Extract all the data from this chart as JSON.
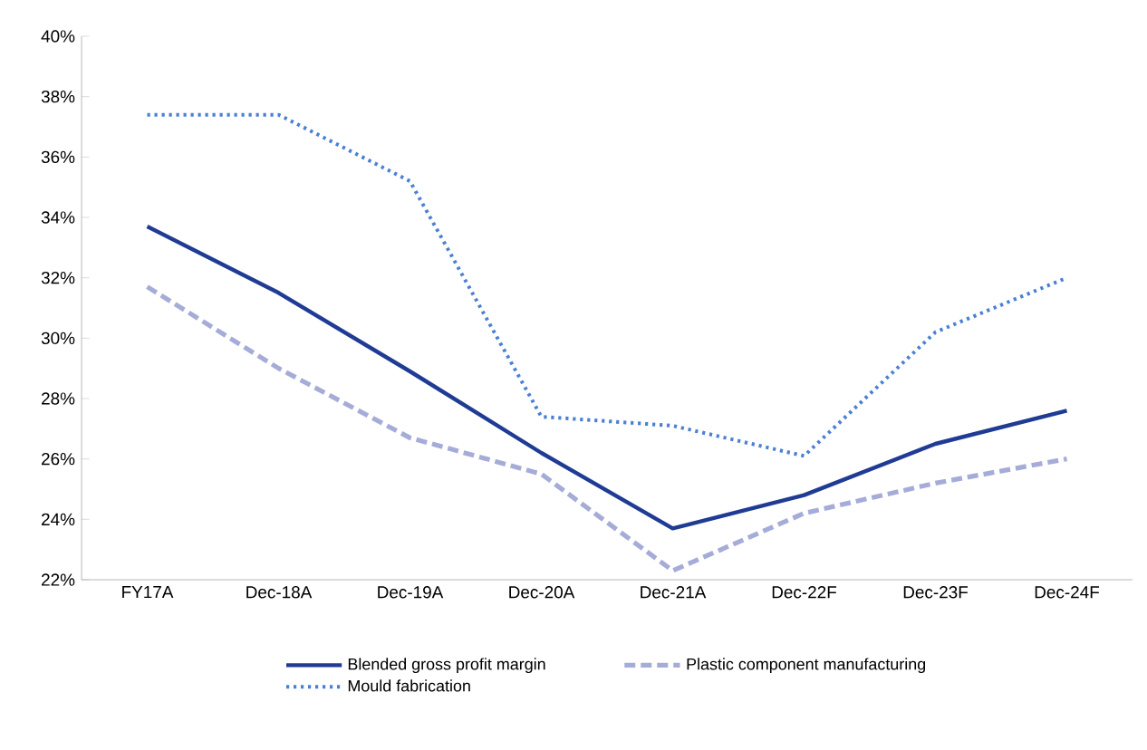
{
  "chart_data": {
    "type": "line",
    "categories": [
      "FY17A",
      "Dec-18A",
      "Dec-19A",
      "Dec-20A",
      "Dec-21A",
      "Dec-22F",
      "Dec-23F",
      "Dec-24F"
    ],
    "series": [
      {
        "name": "Blended gross profit margin",
        "color": "#1f3b94",
        "line_style": "solid",
        "values": [
          33.7,
          31.5,
          28.9,
          26.2,
          23.7,
          24.8,
          26.5,
          27.6
        ]
      },
      {
        "name": "Plastic component manufacturing",
        "color": "#a5acd8",
        "line_style": "dashed",
        "values": [
          31.7,
          29.0,
          26.7,
          25.5,
          22.3,
          24.2,
          25.2,
          26.0
        ]
      },
      {
        "name": "Mould fabrication",
        "color": "#4a80d4",
        "line_style": "dotted",
        "values": [
          37.4,
          37.4,
          35.2,
          27.4,
          27.1,
          26.1,
          30.2,
          32.0
        ]
      }
    ],
    "ylim": [
      22,
      40
    ],
    "yticks": [
      {
        "value": 22,
        "label": "22%"
      },
      {
        "value": 24,
        "label": "24%"
      },
      {
        "value": 26,
        "label": "26%"
      },
      {
        "value": 28,
        "label": "28%"
      },
      {
        "value": 30,
        "label": "30%"
      },
      {
        "value": 32,
        "label": "32%"
      },
      {
        "value": 34,
        "label": "34%"
      },
      {
        "value": 36,
        "label": "36%"
      },
      {
        "value": 38,
        "label": "38%"
      },
      {
        "value": 40,
        "label": "40%"
      }
    ],
    "grid": false,
    "legend": "bottom",
    "marker": "none"
  }
}
